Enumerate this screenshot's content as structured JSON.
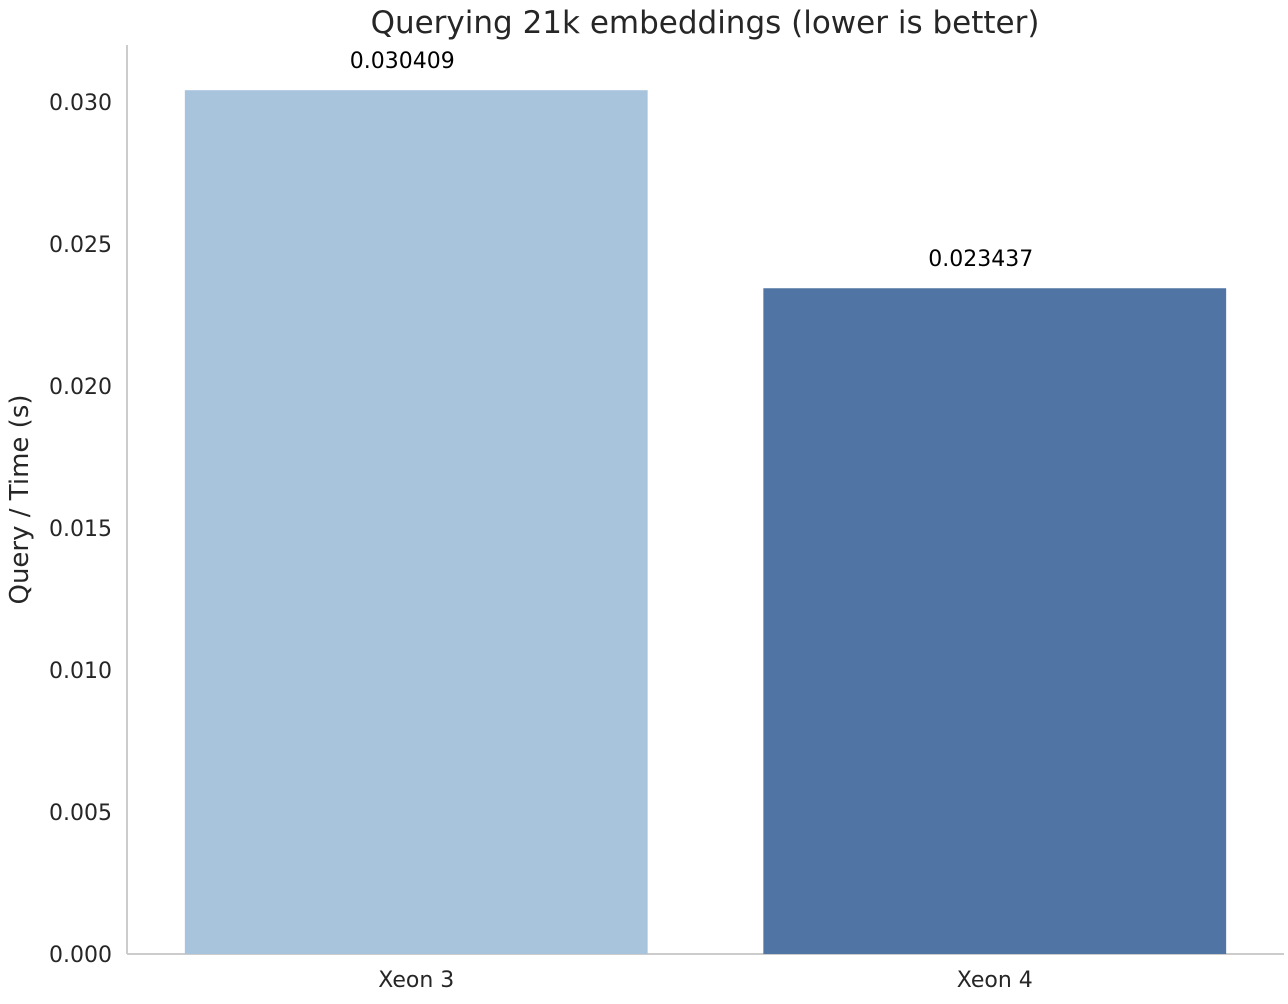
{
  "chart_data": {
    "type": "bar",
    "title": "Querying 21k embeddings (lower is better)",
    "xlabel": "",
    "ylabel": "Query / Time (s)",
    "categories": [
      "Xeon 3",
      "Xeon 4"
    ],
    "values": [
      0.030409,
      0.023437
    ],
    "data_labels": [
      "0.030409",
      "0.023437"
    ],
    "bar_colors": [
      "#a8c4dd",
      "#5074a3"
    ],
    "ylim": [
      0,
      0.032
    ],
    "yticks": [
      0.0,
      0.005,
      0.01,
      0.015,
      0.02,
      0.025,
      0.03
    ],
    "ytick_labels": [
      "0.000",
      "0.005",
      "0.010",
      "0.015",
      "0.020",
      "0.025",
      "0.030"
    ],
    "grid": false,
    "legend": "none"
  }
}
